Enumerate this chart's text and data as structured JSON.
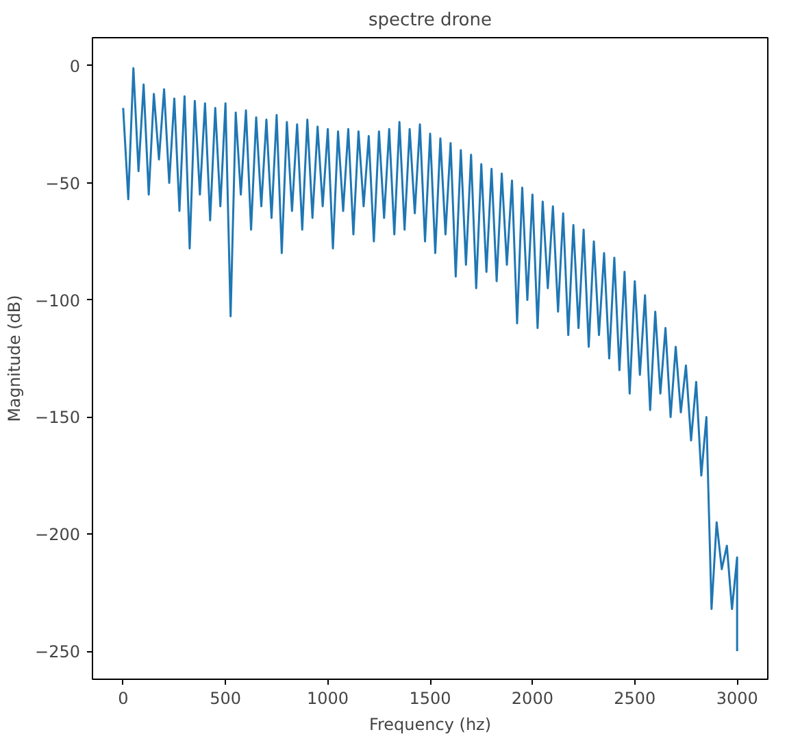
{
  "chart_data": {
    "type": "line",
    "title": "spectre drone",
    "xlabel": "Frequency (hz)",
    "ylabel": "Magnitude (dB)",
    "x": [
      0,
      25,
      50,
      75,
      100,
      125,
      150,
      175,
      200,
      225,
      250,
      275,
      300,
      325,
      350,
      375,
      400,
      425,
      450,
      475,
      500,
      525,
      550,
      575,
      600,
      625,
      650,
      675,
      700,
      725,
      750,
      775,
      800,
      825,
      850,
      875,
      900,
      925,
      950,
      975,
      1000,
      1025,
      1050,
      1075,
      1100,
      1125,
      1150,
      1175,
      1200,
      1225,
      1250,
      1275,
      1300,
      1325,
      1350,
      1375,
      1400,
      1425,
      1450,
      1475,
      1500,
      1525,
      1550,
      1575,
      1600,
      1625,
      1650,
      1675,
      1700,
      1725,
      1750,
      1775,
      1800,
      1825,
      1850,
      1875,
      1900,
      1925,
      1950,
      1975,
      2000,
      2025,
      2050,
      2075,
      2100,
      2125,
      2150,
      2175,
      2200,
      2225,
      2250,
      2275,
      2300,
      2325,
      2350,
      2375,
      2400,
      2425,
      2450,
      2475,
      2500,
      2525,
      2550,
      2575,
      2600,
      2625,
      2650,
      2675,
      2700,
      2725,
      2750,
      2775,
      2800,
      2825,
      2850,
      2875,
      2900,
      2925,
      2950,
      2975,
      3000,
      3000
    ],
    "series": [
      {
        "color": "#1f77b4",
        "values": [
          -18,
          -57,
          -1,
          -45,
          -8,
          -55,
          -12,
          -40,
          -10,
          -50,
          -14,
          -62,
          -13,
          -78,
          -15,
          -55,
          -16,
          -66,
          -18,
          -60,
          -16,
          -107,
          -20,
          -55,
          -19,
          -70,
          -22,
          -60,
          -23,
          -65,
          -21,
          -80,
          -24,
          -62,
          -25,
          -70,
          -23,
          -65,
          -26,
          -60,
          -27,
          -78,
          -28,
          -62,
          -27,
          -72,
          -28,
          -60,
          -30,
          -75,
          -28,
          -65,
          -27,
          -72,
          -24,
          -70,
          -27,
          -63,
          -25,
          -75,
          -29,
          -80,
          -31,
          -72,
          -33,
          -90,
          -36,
          -85,
          -38,
          -95,
          -42,
          -88,
          -44,
          -92,
          -46,
          -85,
          -49,
          -110,
          -52,
          -100,
          -55,
          -112,
          -58,
          -95,
          -60,
          -105,
          -63,
          -115,
          -68,
          -112,
          -70,
          -120,
          -75,
          -115,
          -80,
          -125,
          -82,
          -130,
          -88,
          -140,
          -92,
          -132,
          -98,
          -147,
          -105,
          -140,
          -112,
          -150,
          -120,
          -148,
          -128,
          -160,
          -135,
          -175,
          -150,
          -232,
          -195,
          -215,
          -205,
          -232,
          -210,
          -250
        ]
      }
    ],
    "xlim": [
      -150,
      3150
    ],
    "ylim": [
      -262,
      12
    ],
    "xticks": [
      0,
      500,
      1000,
      1500,
      2000,
      2500,
      3000
    ],
    "yticks": [
      0,
      {
        "value": -50,
        "label": "−50"
      },
      {
        "value": -100,
        "label": "−100"
      },
      {
        "value": -150,
        "label": "−150"
      },
      {
        "value": -200,
        "label": "−200"
      },
      {
        "value": -250,
        "label": "−250"
      }
    ],
    "grid": false,
    "marker": "none",
    "line_style": "solid"
  }
}
